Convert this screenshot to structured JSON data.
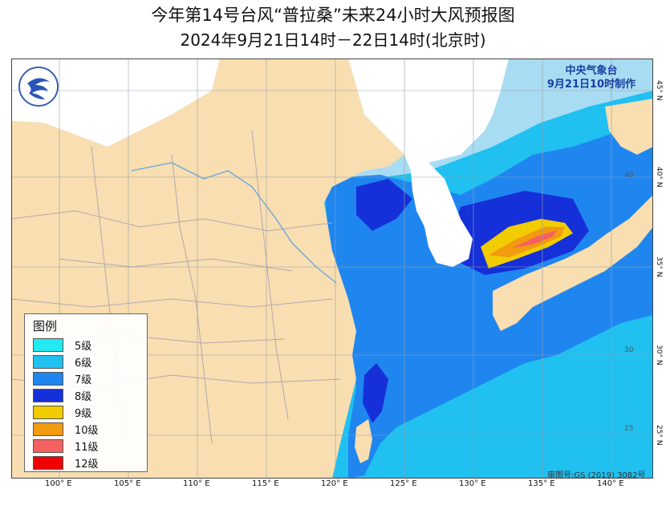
{
  "title": "今年第14号台风“普拉桑”未来24小时大风预报图",
  "subtitle": "2024年9月21日14时－22日14时(北京时)",
  "agency": {
    "name": "中央气象台",
    "issued": "9月21日10时制作"
  },
  "legend": {
    "title": "图例",
    "items": [
      {
        "label": "5级",
        "color": "#22eaf0"
      },
      {
        "label": "6级",
        "color": "#20c0f0"
      },
      {
        "label": "7级",
        "color": "#1f86f0"
      },
      {
        "label": "8级",
        "color": "#1530d8"
      },
      {
        "label": "9级",
        "color": "#f0cc00"
      },
      {
        "label": "10级",
        "color": "#f29a10"
      },
      {
        "label": "11级",
        "color": "#f56060"
      },
      {
        "label": "12级",
        "color": "#f00000"
      }
    ]
  },
  "longitudes": [
    "100° E",
    "105° E",
    "110° E",
    "115° E",
    "120° E",
    "125° E",
    "130° E",
    "135° E",
    "140° E"
  ],
  "latitudes": [
    "45° N",
    "40° N",
    "35° N",
    "30° N",
    "25° N"
  ],
  "inner_lat_labels": [
    "40",
    "30",
    "25"
  ],
  "approval": "审图号:GS (2019) 3082号",
  "colors": {
    "land": "#f8deb0",
    "sea_light": "#a8dcf2",
    "border": "#b5a6b0"
  }
}
